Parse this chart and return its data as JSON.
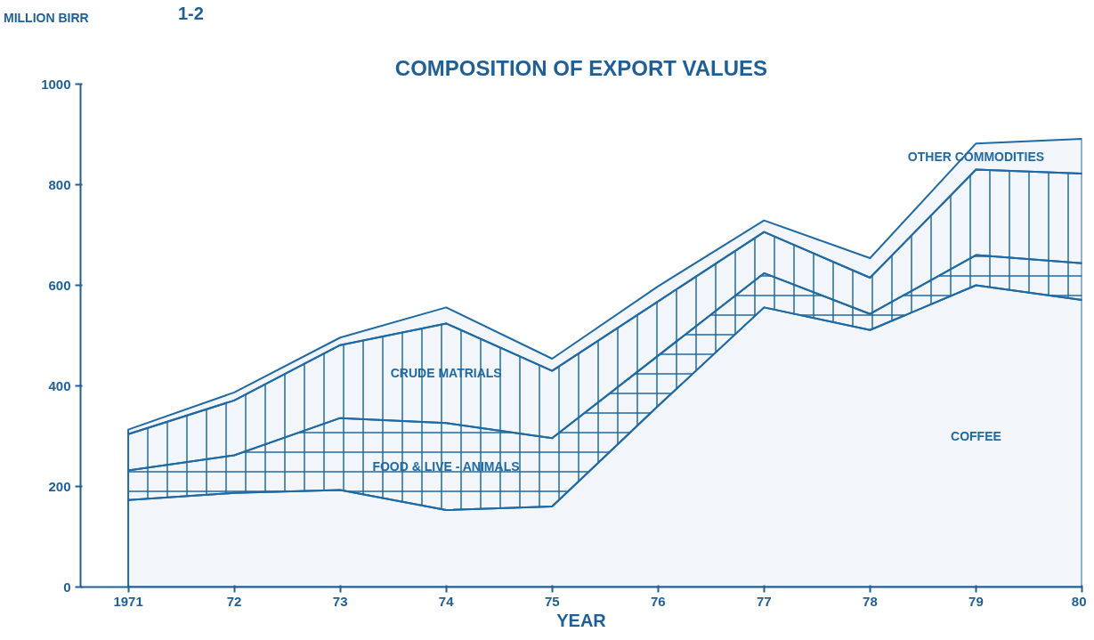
{
  "chart_data": {
    "type": "area",
    "stacked": true,
    "title": "COMPOSITION OF EXPORT VALUES",
    "xlabel": "YEAR",
    "ylabel": "MILLION BIRR",
    "annotations": [
      "1-2"
    ],
    "x": [
      1971,
      1972,
      1973,
      1974,
      1975,
      1976,
      1977,
      1978,
      1979,
      1980
    ],
    "series": [
      {
        "name": "COFFEE",
        "color": "#1f6aa5",
        "values": [
          173,
          187,
          193,
          153,
          160,
          360,
          556,
          511,
          600,
          571
        ]
      },
      {
        "name": "FOOD & LIVE - ANIMALS",
        "color": "#1f6aa5",
        "values": [
          59,
          75,
          143,
          173,
          136,
          100,
          68,
          32,
          60,
          73
        ]
      },
      {
        "name": "CRUDE MATRIALS",
        "color": "#1f6aa5",
        "values": [
          72,
          109,
          145,
          198,
          134,
          108,
          82,
          72,
          170,
          178
        ]
      },
      {
        "name": "OTHER COMMODITIES",
        "color": "#1f6aa5",
        "values": [
          9,
          16,
          15,
          32,
          24,
          30,
          23,
          39,
          52,
          69
        ]
      }
    ],
    "xlim": [
      1970.55,
      1980
    ],
    "xticks": [
      {
        "value": 1971,
        "label": "1971"
      },
      {
        "value": 1972,
        "label": "72"
      },
      {
        "value": 1973,
        "label": "73"
      },
      {
        "value": 1974,
        "label": "74"
      },
      {
        "value": 1975,
        "label": "75"
      },
      {
        "value": 1976,
        "label": "76"
      },
      {
        "value": 1977,
        "label": "77"
      },
      {
        "value": 1978,
        "label": "78"
      },
      {
        "value": 1979,
        "label": "79"
      },
      {
        "value": 1980,
        "label": "80"
      }
    ],
    "ylim": [
      0,
      1000
    ],
    "yticks": [
      0,
      200,
      400,
      600,
      800,
      1000
    ],
    "grid": false,
    "legend": false
  }
}
